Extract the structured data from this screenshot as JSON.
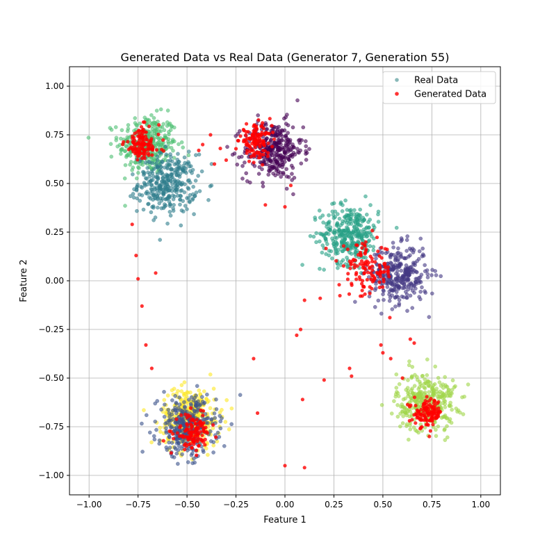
{
  "chart_data": {
    "type": "scatter",
    "title": "Generated Data vs Real Data (Generator 7, Generation 55)",
    "xlabel": "Feature 1",
    "ylabel": "Feature 2",
    "xlim": [
      -1.1,
      1.1
    ],
    "ylim": [
      -1.1,
      1.1
    ],
    "xticks": [
      -1.0,
      -0.75,
      -0.5,
      -0.25,
      0.0,
      0.25,
      0.5,
      0.75,
      1.0
    ],
    "yticks": [
      -1.0,
      -0.75,
      -0.5,
      -0.25,
      0.0,
      0.25,
      0.5,
      0.75,
      1.0
    ],
    "xtick_labels": [
      "−1.00",
      "−0.75",
      "−0.50",
      "−0.25",
      "0.00",
      "0.25",
      "0.50",
      "0.75",
      "1.00"
    ],
    "ytick_labels": [
      "−1.00",
      "−0.75",
      "−0.50",
      "−0.25",
      "0.00",
      "0.25",
      "0.50",
      "0.75",
      "1.00"
    ],
    "grid": true,
    "legend_position": "top-right",
    "legend": [
      {
        "label": "Real Data",
        "color": "#3b8a8a"
      },
      {
        "label": "Generated Data",
        "color": "#ff0000"
      }
    ],
    "real_clusters": [
      {
        "center": [
          -0.7,
          0.7
        ],
        "spread": 0.075,
        "color": "#4fbf73"
      },
      {
        "center": [
          -0.6,
          0.5
        ],
        "spread": 0.075,
        "color": "#2e7d8c"
      },
      {
        "center": [
          -0.06,
          0.67
        ],
        "spread": 0.075,
        "color": "#440154"
      },
      {
        "center": [
          0.33,
          0.24
        ],
        "spread": 0.075,
        "color": "#26a085"
      },
      {
        "center": [
          0.58,
          0.03
        ],
        "spread": 0.075,
        "color": "#443983"
      },
      {
        "center": [
          0.72,
          -0.62
        ],
        "spread": 0.075,
        "color": "#a0d54a"
      },
      {
        "center": [
          -0.48,
          -0.7
        ],
        "spread": 0.075,
        "color": "#fde725"
      },
      {
        "center": [
          -0.5,
          -0.75
        ],
        "spread": 0.075,
        "color": "#3b528b"
      }
    ],
    "generated_clusters": [
      {
        "center": [
          -0.73,
          0.7
        ],
        "spread": 0.045
      },
      {
        "center": [
          -0.15,
          0.72
        ],
        "spread": 0.04
      },
      {
        "center": [
          0.42,
          0.05
        ],
        "spread": 0.07
      },
      {
        "center": [
          0.73,
          -0.68
        ],
        "spread": 0.035
      },
      {
        "center": [
          -0.47,
          -0.78
        ],
        "spread": 0.045
      }
    ],
    "generated_outliers": [
      [
        -0.78,
        0.29
      ],
      [
        -0.76,
        0.13
      ],
      [
        -0.75,
        0.01
      ],
      [
        -0.73,
        -0.13
      ],
      [
        -0.71,
        -0.33
      ],
      [
        -0.68,
        -0.45
      ],
      [
        -0.66,
        0.04
      ],
      [
        -0.16,
        -0.4
      ],
      [
        -0.14,
        -0.68
      ],
      [
        0.0,
        -0.95
      ],
      [
        0.06,
        -0.28
      ],
      [
        0.08,
        -0.25
      ],
      [
        0.09,
        -0.61
      ],
      [
        0.1,
        -0.96
      ],
      [
        0.2,
        -0.51
      ],
      [
        0.33,
        -0.45
      ],
      [
        0.34,
        -0.49
      ],
      [
        0.49,
        -0.33
      ],
      [
        0.5,
        -0.37
      ],
      [
        0.54,
        -0.4
      ],
      [
        0.6,
        -0.5
      ],
      [
        0.64,
        -0.3
      ],
      [
        0.66,
        -0.32
      ],
      [
        -0.33,
        0.68
      ],
      [
        -0.38,
        0.75
      ],
      [
        -0.42,
        0.7
      ],
      [
        -0.44,
        0.67
      ],
      [
        -0.36,
        0.6
      ],
      [
        -0.3,
        0.62
      ],
      [
        -0.24,
        0.72
      ],
      [
        -0.1,
        0.39
      ],
      [
        0.0,
        0.38
      ],
      [
        0.1,
        -0.1
      ],
      [
        0.18,
        -0.09
      ],
      [
        0.03,
        0.49
      ]
    ]
  }
}
